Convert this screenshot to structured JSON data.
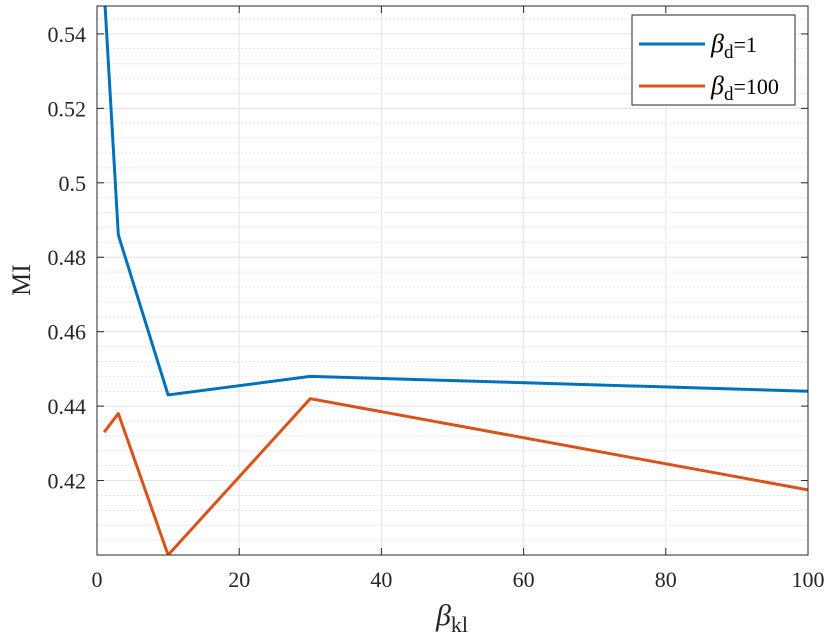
{
  "chart_data": {
    "type": "line",
    "xlabel": {
      "base": "β",
      "sub": "kl"
    },
    "ylabel": "MI",
    "xlim": [
      0,
      100
    ],
    "ylim": [
      0.4,
      0.5475
    ],
    "xticks": [
      0,
      20,
      40,
      60,
      80,
      100
    ],
    "xtick_labels": [
      "0",
      "20",
      "40",
      "60",
      "80",
      "100"
    ],
    "yticks": [
      0.42,
      0.44,
      0.46,
      0.48,
      0.5,
      0.52,
      0.54
    ],
    "ytick_labels": [
      "0.42",
      "0.44",
      "0.46",
      "0.48",
      "0.5",
      "0.52",
      "0.54"
    ],
    "grid": true,
    "minor_grid": true,
    "legend_position": "top-right",
    "series": [
      {
        "label_base": "β",
        "label_sub": "d",
        "label_rest": "=1",
        "color": "#0072BD",
        "x": [
          1,
          3,
          10,
          30,
          100
        ],
        "y": [
          0.552,
          0.486,
          0.443,
          0.448,
          0.444
        ]
      },
      {
        "label_base": "β",
        "label_sub": "d",
        "label_rest": "=100",
        "color": "#D95319",
        "x": [
          1,
          3,
          10,
          30,
          100
        ],
        "y": [
          0.433,
          0.438,
          0.4,
          0.442,
          0.4175
        ]
      }
    ]
  }
}
